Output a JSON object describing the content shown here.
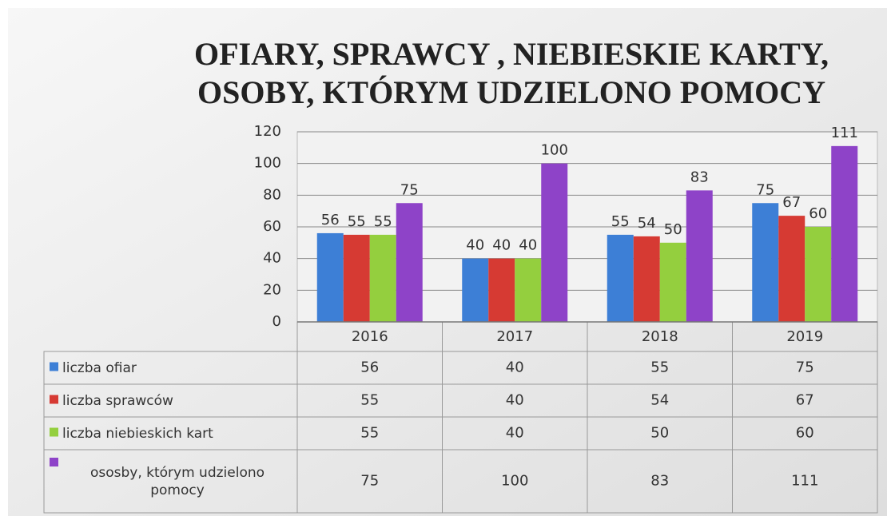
{
  "chart_data": {
    "type": "bar",
    "title": [
      "OFIARY, SPRAWCY , NIEBIESKIE KARTY,",
      "OSOBY, KTÓRYM UDZIELONO POMOCY"
    ],
    "categories": [
      "2016",
      "2017",
      "2018",
      "2019"
    ],
    "series": [
      {
        "name": "liczba ofiar",
        "color": "#3d7fd6",
        "values": [
          56,
          40,
          55,
          75
        ]
      },
      {
        "name": "liczba sprawców",
        "color": "#d63a33",
        "values": [
          55,
          40,
          54,
          67
        ]
      },
      {
        "name": "liczba niebieskich kart",
        "color": "#94cf3e",
        "values": [
          55,
          40,
          50,
          60
        ]
      },
      {
        "name": "ososby, którym udzielono pomocy",
        "color": "#8e43c8",
        "values": [
          75,
          100,
          83,
          111
        ]
      }
    ],
    "ylim": [
      0,
      120
    ],
    "yticks": [
      0,
      20,
      40,
      60,
      80,
      100,
      120
    ],
    "grid": true
  }
}
